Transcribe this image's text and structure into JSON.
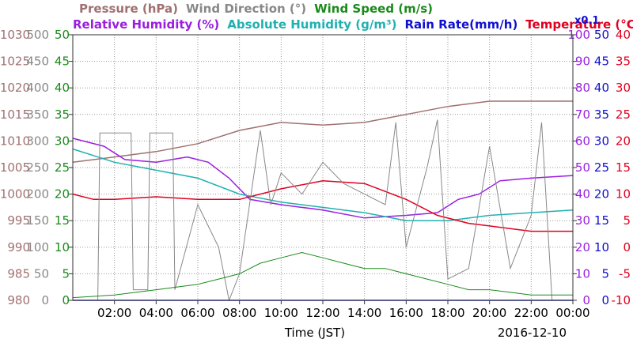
{
  "chart_data": {
    "type": "line",
    "date": "2016-12-10",
    "xlabel": "Time (JST)",
    "x_ticks": [
      "02:00",
      "04:00",
      "06:00",
      "08:00",
      "10:00",
      "12:00",
      "14:00",
      "16:00",
      "18:00",
      "20:00",
      "22:00",
      "00:00"
    ],
    "x_range_hours": [
      0,
      24
    ],
    "grid": true,
    "legend_line1": [
      {
        "name": "Pressure (hPa)",
        "color": "#a07070"
      },
      {
        "name": "Wind Direction (°)",
        "color": "#888888"
      },
      {
        "name": "Wind Speed (m/s)",
        "color": "#1a8a1a"
      }
    ],
    "legend_line2": [
      {
        "name": "Relative Humidity (%)",
        "color": "#9a1ee0"
      },
      {
        "name": "Absolute Humidity (g/m³)",
        "color": "#20b0b0"
      },
      {
        "name": "Rain Rate(mm/h)",
        "color": "#1010d0"
      },
      {
        "name": "Temperature (°C)",
        "color": "#e00020"
      }
    ],
    "rain_scale_note": "x0.1",
    "axes": {
      "pressure": {
        "ticks": [
          "1030",
          "1025",
          "1020",
          "1015",
          "1010",
          "1005",
          "1000",
          "995",
          "990",
          "985",
          "980"
        ],
        "range": [
          980,
          1030
        ],
        "color": "#a07070"
      },
      "wind_direction": {
        "ticks": [
          "500",
          "450",
          "400",
          "350",
          "300",
          "250",
          "200",
          "150",
          "100",
          "50",
          "0"
        ],
        "range": [
          0,
          500
        ],
        "color": "#888888"
      },
      "wind_speed": {
        "ticks": [
          "50",
          "45",
          "40",
          "35",
          "30",
          "25",
          "20",
          "15",
          "10",
          "5",
          "0"
        ],
        "range": [
          0,
          50
        ],
        "color": "#1a8a1a"
      },
      "humidity": {
        "ticks": [
          "100",
          "90",
          "80",
          "70",
          "60",
          "50",
          "40",
          "30",
          "20",
          "10",
          "0"
        ],
        "range": [
          0,
          100
        ],
        "color": "#9a1ee0"
      },
      "rain": {
        "ticks": [
          "50",
          "45",
          "40",
          "35",
          "30",
          "25",
          "20",
          "15",
          "10",
          "5",
          "0"
        ],
        "range": [
          0,
          50
        ],
        "color": "#1010d0"
      },
      "temperature": {
        "ticks": [
          "40",
          "35",
          "30",
          "25",
          "20",
          "15",
          "10",
          "5",
          "0",
          "-5",
          "-10"
        ],
        "range": [
          -10,
          40
        ],
        "color": "#e00020"
      }
    },
    "series": [
      {
        "name": "Pressure (hPa)",
        "axis": "pressure",
        "color": "#a07070",
        "x": [
          0,
          2,
          4,
          6,
          8,
          10,
          12,
          14,
          16,
          18,
          20,
          22,
          24
        ],
        "values": [
          1006,
          1007,
          1008,
          1009.5,
          1012,
          1013.5,
          1013,
          1013.5,
          1015,
          1016.5,
          1017.5,
          1017.5,
          1017.5
        ]
      },
      {
        "name": "Relative Humidity (%)",
        "axis": "humidity",
        "color": "#9a1ee0",
        "x": [
          0,
          1.5,
          2.5,
          4,
          5.5,
          6.5,
          7.5,
          8.5,
          10,
          12,
          14,
          16,
          17.5,
          18.5,
          19.5,
          20.5,
          22,
          24
        ],
        "values": [
          61,
          58,
          53,
          52,
          54,
          52,
          46,
          38,
          36,
          34,
          31,
          32,
          33,
          38,
          40,
          45,
          46,
          47
        ]
      },
      {
        "name": "Absolute Humidity (g/m³)",
        "axis": "humidity",
        "color": "#20b0b0",
        "x": [
          0,
          2,
          4,
          6,
          8,
          10,
          12,
          14,
          16,
          18,
          20,
          22,
          24
        ],
        "values": [
          57,
          52,
          49,
          46,
          40,
          37,
          35,
          33,
          30,
          30,
          32,
          33,
          34
        ]
      },
      {
        "name": "Temperature (°C)",
        "axis": "temperature",
        "color": "#e00020",
        "x": [
          0,
          1,
          2,
          4,
          6,
          8,
          10,
          12,
          14,
          16,
          17.5,
          19,
          20,
          22,
          24
        ],
        "values": [
          10,
          9,
          9,
          9.5,
          9,
          9,
          11,
          12.5,
          12,
          9,
          6,
          4.5,
          4,
          3,
          3
        ]
      },
      {
        "name": "Rain Rate(mm/h)",
        "axis": "rain",
        "color": "#1010d0",
        "x": [
          0,
          24
        ],
        "values": [
          0,
          0
        ]
      },
      {
        "name": "Wind Direction (°)",
        "axis": "wind_direction",
        "color": "#888888",
        "x": [
          0,
          1.2,
          1.3,
          2.8,
          2.9,
          3.6,
          3.7,
          4.8,
          4.9,
          6,
          7,
          7.5,
          8,
          9,
          9.5,
          10,
          11,
          12,
          13,
          14,
          15,
          15.5,
          16,
          17,
          17.5,
          18,
          19,
          20,
          21,
          22,
          22.5,
          23,
          24
        ],
        "values": [
          0,
          0,
          315,
          315,
          20,
          20,
          315,
          315,
          20,
          180,
          100,
          0,
          50,
          320,
          180,
          240,
          200,
          260,
          220,
          200,
          180,
          335,
          100,
          250,
          340,
          40,
          60,
          290,
          60,
          160,
          335,
          0,
          0
        ]
      },
      {
        "name": "Wind Speed (m/s)",
        "axis": "wind_speed",
        "color": "#1a8a1a",
        "x": [
          0,
          2,
          4,
          6,
          7,
          8,
          9,
          10,
          11,
          12,
          13,
          14,
          15,
          16,
          17,
          18,
          19,
          20,
          21,
          22,
          23,
          24
        ],
        "values": [
          0.5,
          1,
          2,
          3,
          4,
          5,
          7,
          8,
          9,
          8,
          7,
          6,
          6,
          5,
          4,
          3,
          2,
          2,
          1.5,
          1,
          1,
          1
        ]
      }
    ]
  }
}
